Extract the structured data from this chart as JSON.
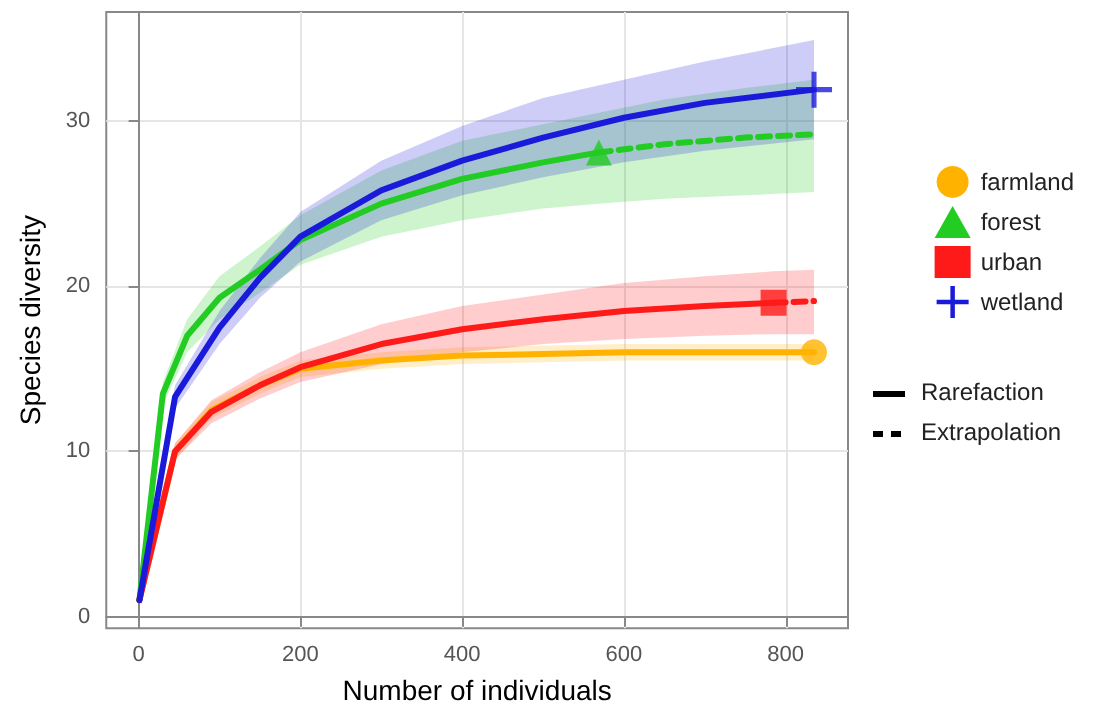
{
  "chart_data": {
    "type": "line",
    "xlabel": "Number of individuals",
    "ylabel": "Species diversity",
    "xlim": [
      -40,
      877
    ],
    "ylim": [
      -0.7,
      36.6
    ],
    "xticks": [
      0,
      200,
      400,
      600,
      800
    ],
    "yticks": [
      0,
      10,
      20,
      30
    ],
    "grid": true,
    "legend": "right",
    "annotations": [
      "Rarefaction",
      "Extrapolation"
    ],
    "series": [
      {
        "type": "scatter",
        "color": "#ffb300",
        "marker": "circle",
        "x": [
          835
        ],
        "values": [
          16
        ]
      },
      {
        "type": "scatter",
        "color": "#22cc22",
        "marker": "triangle",
        "x": [
          569
        ],
        "values": [
          28.1
        ]
      },
      {
        "type": "scatter",
        "color": "#ff1a1a",
        "marker": "square",
        "x": [
          785
        ],
        "values": [
          19
        ]
      },
      {
        "type": "scatter",
        "color": "#1a1adb",
        "marker": "cross",
        "x": [
          835
        ],
        "values": [
          31.9
        ]
      },
      {
        "name": "farmland",
        "color": "#ffb300",
        "line_style": "solid",
        "x": [
          1,
          45,
          90,
          150,
          200,
          300,
          400,
          500,
          600,
          835
        ],
        "values": [
          1,
          10,
          12.5,
          14,
          15,
          15.5,
          15.8,
          15.9,
          16,
          16
        ],
        "lower": [
          1,
          9.5,
          12,
          13.5,
          14.5,
          15,
          15.3,
          15.4,
          15.5,
          15.5
        ],
        "upper": [
          1,
          10.5,
          13,
          14.5,
          15.5,
          16,
          16.3,
          16.4,
          16.5,
          16.5
        ]
      },
      {
        "name": "forest",
        "color": "#22cc22",
        "line_style": "solid",
        "x": [
          1,
          30,
          60,
          100,
          150,
          200,
          300,
          400,
          500,
          569
        ],
        "values": [
          1,
          13.5,
          17,
          19.3,
          21,
          22.8,
          25,
          26.5,
          27.5,
          28.1
        ],
        "lower": [
          1,
          12.8,
          16,
          18,
          19.6,
          21.3,
          23,
          24,
          24.7,
          25
        ],
        "upper": [
          1,
          14.2,
          18,
          20.6,
          22.4,
          24.3,
          27,
          28.8,
          29.8,
          30.5
        ]
      },
      {
        "color": "#22cc22",
        "line_style": "dashed",
        "x": [
          569,
          650,
          750,
          835
        ],
        "values": [
          28.1,
          28.6,
          29,
          29.2
        ],
        "lower": [
          25,
          25.3,
          25.5,
          25.7
        ],
        "upper": [
          30.5,
          31.3,
          32,
          32.5
        ]
      },
      {
        "name": "urban",
        "color": "#ff1a1a",
        "line_style": "solid",
        "x": [
          1,
          45,
          90,
          150,
          200,
          300,
          400,
          500,
          600,
          700,
          785
        ],
        "values": [
          1,
          10,
          12.4,
          14,
          15.1,
          16.5,
          17.4,
          18,
          18.5,
          18.8,
          19
        ],
        "lower": [
          1,
          9.5,
          11.7,
          13.2,
          14.2,
          15.3,
          16,
          16.5,
          16.8,
          17,
          17.1
        ],
        "upper": [
          1,
          10.5,
          13.1,
          14.8,
          16,
          17.7,
          18.8,
          19.5,
          20.2,
          20.6,
          20.9
        ]
      },
      {
        "color": "#ff1a1a",
        "line_style": "dashed",
        "x": [
          785,
          835
        ],
        "values": [
          19,
          19.1
        ],
        "lower": [
          17.1,
          17.1
        ],
        "upper": [
          20.9,
          21
        ]
      },
      {
        "name": "wetland",
        "color": "#1a1adb",
        "line_style": "solid",
        "x": [
          1,
          45,
          100,
          150,
          200,
          300,
          400,
          500,
          600,
          700,
          835
        ],
        "values": [
          1,
          13.3,
          17.5,
          20.5,
          23,
          25.8,
          27.6,
          29,
          30.2,
          31.1,
          31.9
        ],
        "lower": [
          1,
          12.6,
          16.5,
          19.3,
          21.5,
          24,
          25.5,
          26.6,
          27.5,
          28.2,
          28.9
        ],
        "upper": [
          1,
          14,
          18.5,
          21.7,
          24.5,
          27.6,
          29.7,
          31.4,
          32.5,
          33.6,
          34.9
        ]
      }
    ]
  }
}
